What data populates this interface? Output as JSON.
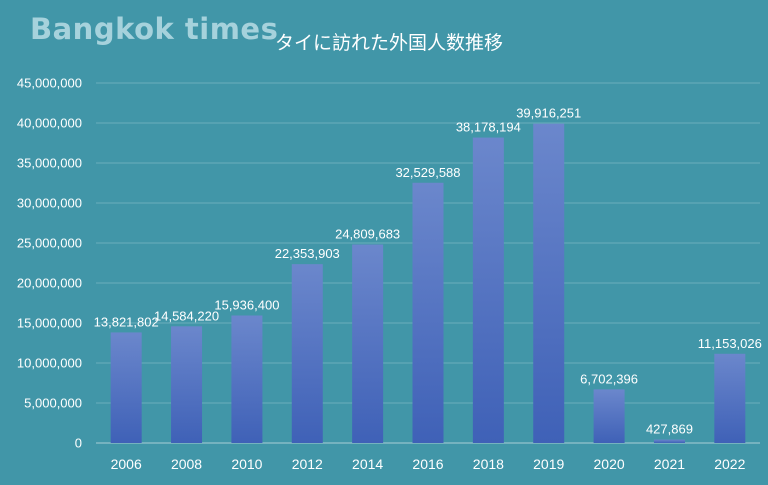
{
  "watermark": "Bangkok times",
  "colors": {
    "background": "#4196a8",
    "bar_top": "#6b87cc",
    "bar_bottom": "#3f61b7",
    "text": "#ffffff"
  },
  "chart_data": {
    "type": "bar",
    "title": "タイに訪れた外国人数推移",
    "xlabel": "",
    "ylabel": "",
    "categories": [
      "2006",
      "2008",
      "2010",
      "2012",
      "2014",
      "2016",
      "2018",
      "2019",
      "2020",
      "2021",
      "2022"
    ],
    "values": [
      13821802,
      14584220,
      15936400,
      22353903,
      24809683,
      32529588,
      38178194,
      39916251,
      6702396,
      427869,
      11153026
    ],
    "data_labels": [
      "13,821,802",
      "14,584,220",
      "15,936,400",
      "22,353,903",
      "24,809,683",
      "32,529,588",
      "38,178,194",
      "39,916,251",
      "6,702,396",
      "427,869",
      "11,153,026"
    ],
    "ylim": [
      0,
      45000000
    ],
    "yticks": [
      0,
      5000000,
      10000000,
      15000000,
      20000000,
      25000000,
      30000000,
      35000000,
      40000000,
      45000000
    ],
    "ytick_labels": [
      "0",
      "5,000,000",
      "10,000,000",
      "15,000,000",
      "20,000,000",
      "25,000,000",
      "30,000,000",
      "35,000,000",
      "40,000,000",
      "45,000,000"
    ],
    "grid": true,
    "legend": "none"
  }
}
